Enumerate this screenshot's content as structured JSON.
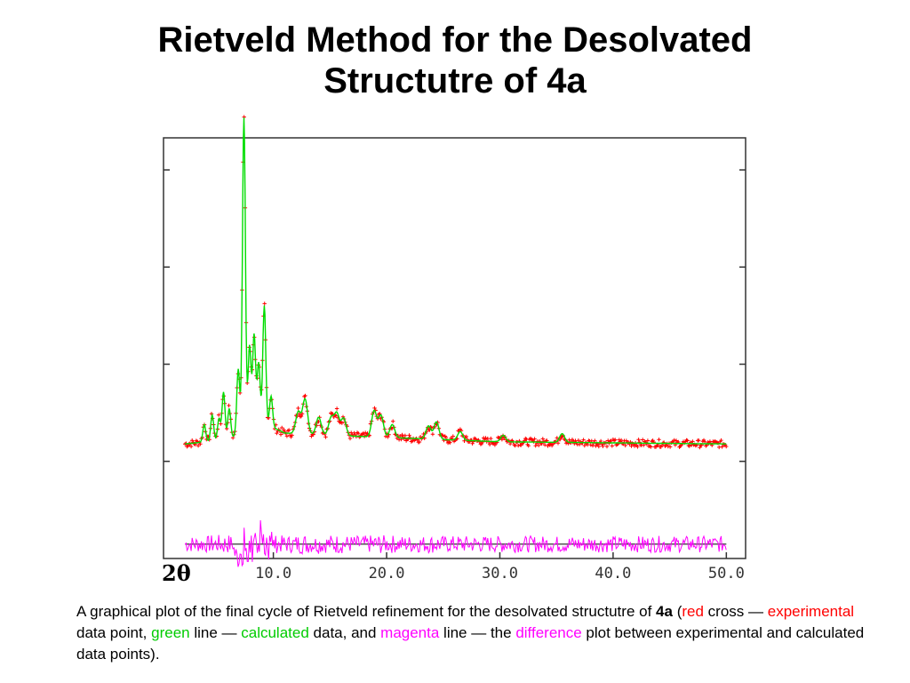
{
  "slide": {
    "title_line1": "Rietveld Method for the Desolvated",
    "title_line2": "Structutre of 4a"
  },
  "chart_data": {
    "type": "line",
    "xlabel": "2θ",
    "x_ticks": [
      10,
      20,
      30,
      40,
      50
    ],
    "x_tick_labels": [
      "10.0",
      "20.0",
      "30.0",
      "40.0",
      "50.0"
    ],
    "xlim": [
      0.3,
      51.7
    ],
    "ylim": [
      0,
      1.0
    ],
    "grid": false,
    "y_tick_count": 4,
    "series": [
      {
        "style": "red cross",
        "color": "#ff0000"
      },
      {
        "style": "green line",
        "color": "#00dd00"
      },
      {
        "style": "magenta line",
        "color": "#ff00ff"
      }
    ],
    "peaks": [
      {
        "x": 3.9,
        "y": 0.04
      },
      {
        "x": 4.6,
        "y": 0.06
      },
      {
        "x": 5.2,
        "y": 0.05
      },
      {
        "x": 5.6,
        "y": 0.11
      },
      {
        "x": 6.1,
        "y": 0.07
      },
      {
        "x": 6.9,
        "y": 0.15
      },
      {
        "x": 7.4,
        "y": 0.72
      },
      {
        "x": 7.9,
        "y": 0.19
      },
      {
        "x": 8.3,
        "y": 0.21
      },
      {
        "x": 8.7,
        "y": 0.14
      },
      {
        "x": 9.2,
        "y": 0.27
      },
      {
        "x": 9.8,
        "y": 0.07
      },
      {
        "x": 12.2,
        "y": 0.05
      },
      {
        "x": 12.8,
        "y": 0.08
      },
      {
        "x": 14.0,
        "y": 0.04
      },
      {
        "x": 15.1,
        "y": 0.04
      },
      {
        "x": 15.6,
        "y": 0.05
      },
      {
        "x": 16.2,
        "y": 0.04
      },
      {
        "x": 18.9,
        "y": 0.06
      },
      {
        "x": 19.5,
        "y": 0.05
      },
      {
        "x": 20.5,
        "y": 0.03
      },
      {
        "x": 23.7,
        "y": 0.03
      },
      {
        "x": 24.4,
        "y": 0.04
      },
      {
        "x": 26.5,
        "y": 0.02
      },
      {
        "x": 30.3,
        "y": 0.015
      },
      {
        "x": 35.5,
        "y": 0.02
      }
    ],
    "baseline": {
      "x": [
        2.2,
        6.0,
        9.0,
        11.0,
        15.0,
        20.0,
        30.0,
        50.0
      ],
      "y": [
        0.02,
        0.03,
        0.07,
        0.045,
        0.04,
        0.035,
        0.025,
        0.02
      ]
    },
    "difference_offset": -0.21
  },
  "caption": {
    "p1": "A graphical plot of the final cycle of Rietveld refinement for the desolvated structutre of ",
    "p2": "4a",
    "p3": "(",
    "p4": "red",
    "p5": " cross — ",
    "p6": "experimental",
    "p7": " data point, ",
    "p8": "green",
    "p9": " line — ",
    "p10": "calculated",
    "p11": " data, and ",
    "p12": "magenta",
    "p13": " line — the ",
    "p14": "difference",
    "p15": " plot between experimental and calculated data points)."
  }
}
